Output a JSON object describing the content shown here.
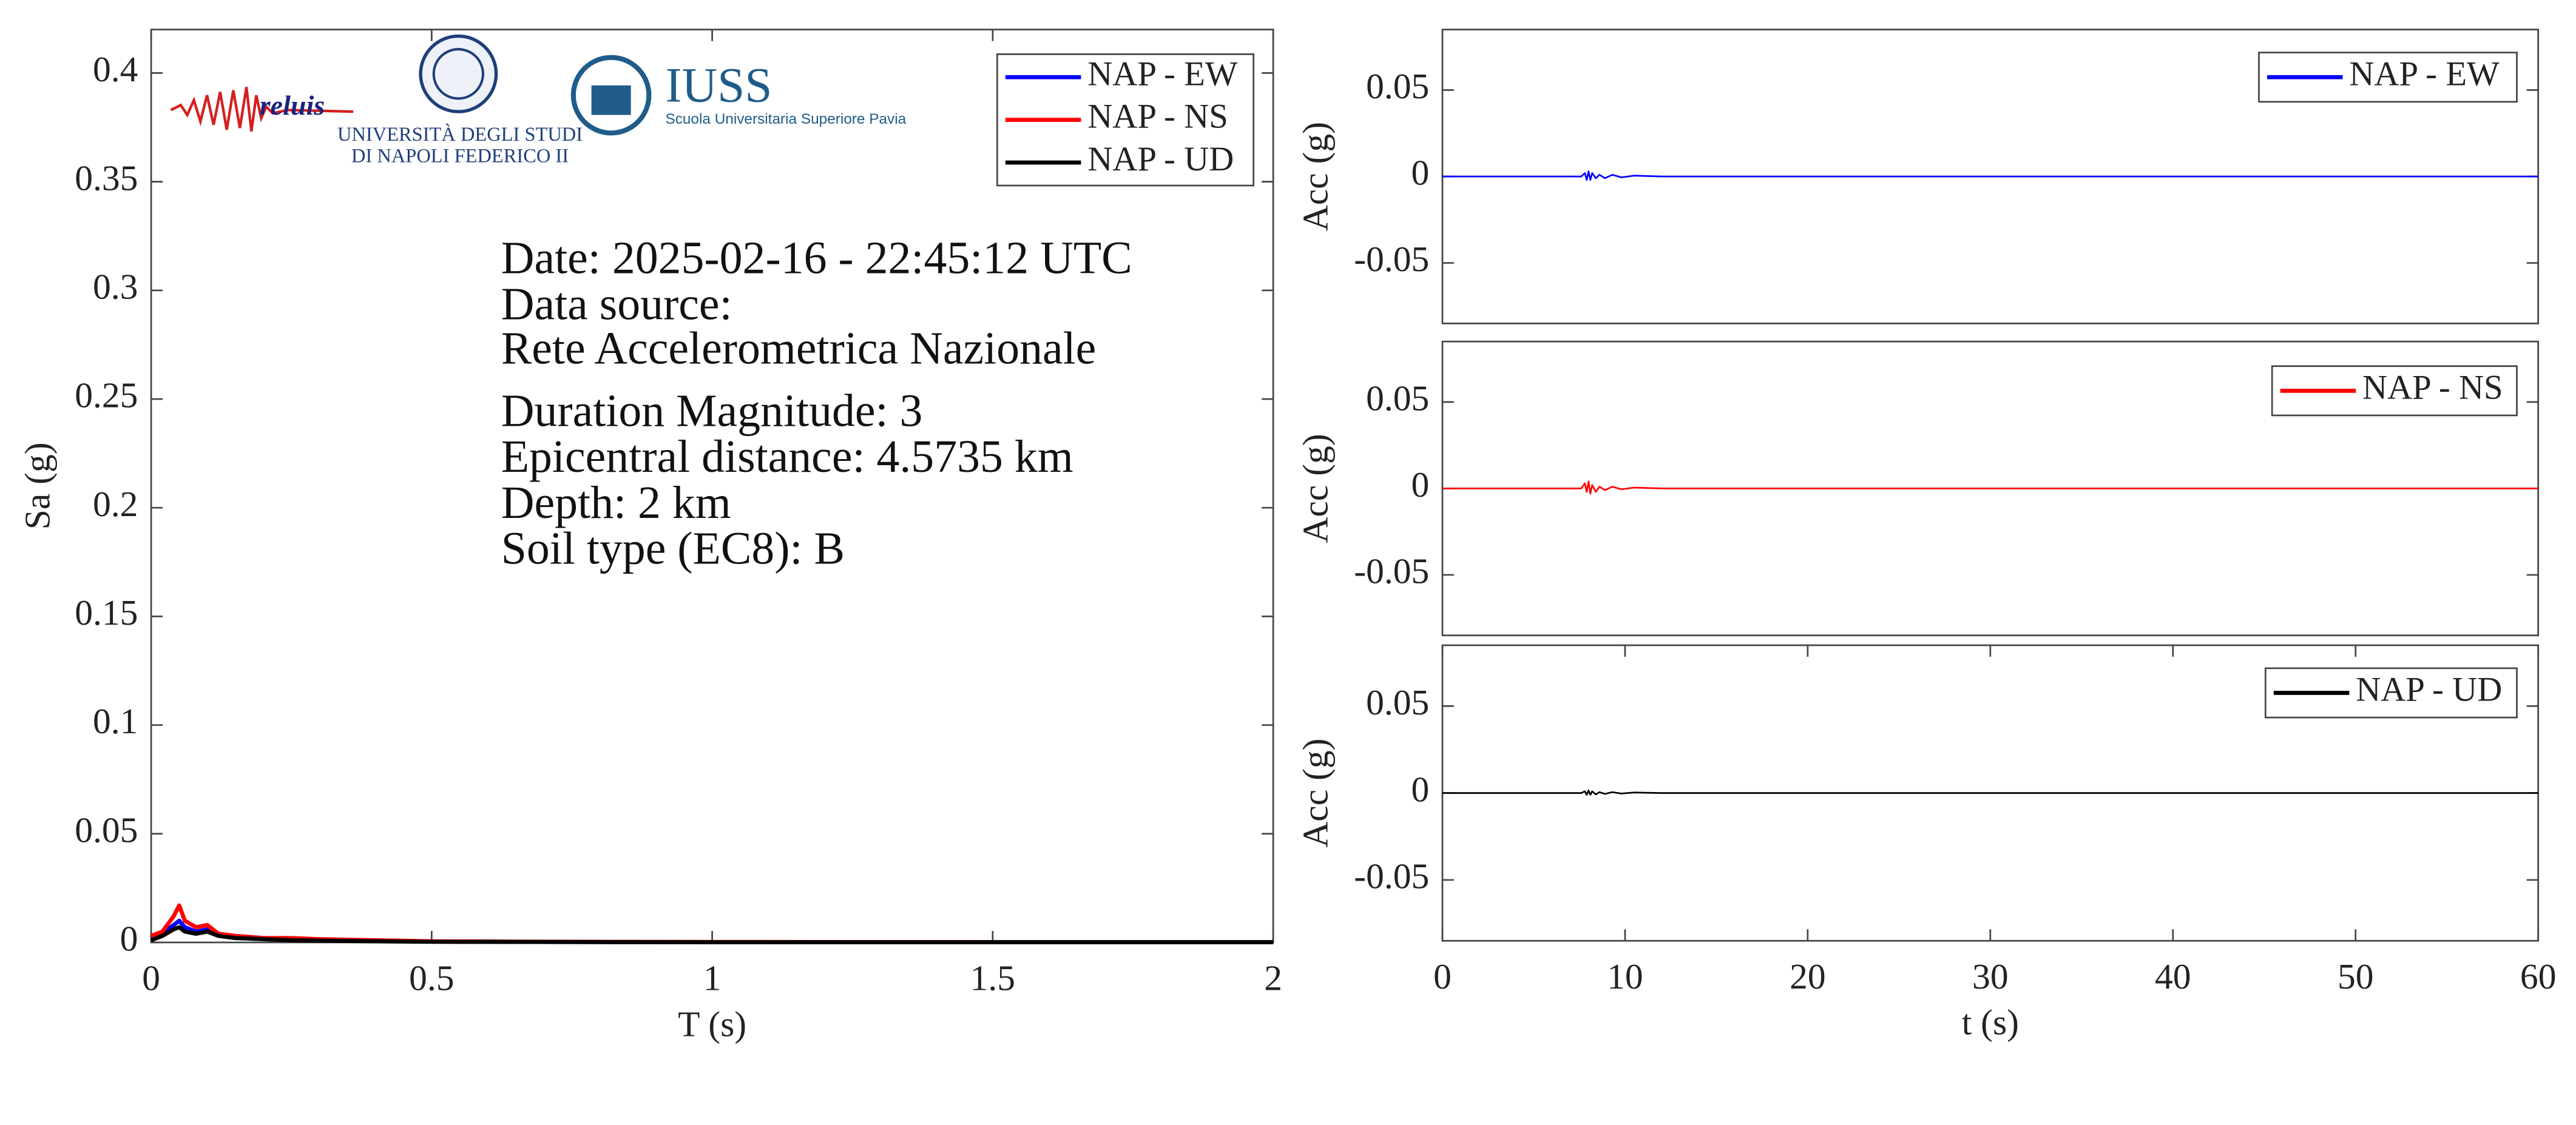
{
  "chart_data": [
    {
      "type": "line",
      "xlabel": "T (s)",
      "ylabel": "Sa (g)",
      "xlim": [
        0,
        2
      ],
      "xticks": [
        0,
        0.5,
        1,
        1.5,
        2
      ],
      "ylim": [
        0,
        0.42
      ],
      "yticks": [
        0,
        0.05,
        0.1,
        0.15,
        0.2,
        0.25,
        0.3,
        0.35,
        0.4
      ],
      "legend": "upper right",
      "annotations": [
        "Date: 2025-02-16 - 22:45:12 UTC",
        "Data source:",
        "Rete Accelerometrica Nazionale",
        "Duration Magnitude: 3",
        "Epicentral distance: 4.5735 km",
        "Depth: 2 km",
        "Soil type (EC8): B"
      ],
      "logos": [
        "reluis",
        "UNIVERSITÀ DEGLI STUDI",
        "DI NAPOLI FEDERICO II",
        "IUSS",
        "Scuola Universitaria Superiore Pavia"
      ],
      "x": [
        0,
        0.02,
        0.04,
        0.05,
        0.06,
        0.08,
        0.1,
        0.12,
        0.15,
        0.2,
        0.25,
        0.3,
        0.4,
        0.5,
        0.75,
        1,
        1.5,
        2
      ],
      "series": [
        {
          "name": "NAP - EW",
          "color": "#0000ff",
          "values": [
            0.002,
            0.004,
            0.008,
            0.01,
            0.007,
            0.005,
            0.006,
            0.004,
            0.003,
            0.002,
            0.0015,
            0.001,
            0.0007,
            0.0004,
            0.0002,
            0.0001,
            0.0001,
            0.0001
          ]
        },
        {
          "name": "NAP - NS",
          "color": "#ff0000",
          "values": [
            0.003,
            0.005,
            0.012,
            0.017,
            0.01,
            0.007,
            0.008,
            0.004,
            0.003,
            0.002,
            0.002,
            0.0015,
            0.001,
            0.0005,
            0.0003,
            0.0002,
            0.0001,
            0.0001
          ]
        },
        {
          "name": "NAP - UD",
          "color": "#000000",
          "values": [
            0.001,
            0.003,
            0.006,
            0.007,
            0.005,
            0.004,
            0.005,
            0.003,
            0.002,
            0.0015,
            0.001,
            0.0008,
            0.0005,
            0.0003,
            0.0002,
            0.0001,
            0.0001,
            0.0001
          ]
        }
      ]
    },
    {
      "type": "line",
      "ylabel": "Acc (g)",
      "xlim": [
        0,
        60
      ],
      "ylim": [
        -0.085,
        0.085
      ],
      "yticks": [
        -0.05,
        0,
        0.05
      ],
      "legend": "upper right",
      "x": [
        0,
        7.6,
        7.8,
        7.9,
        8.0,
        8.1,
        8.2,
        8.4,
        8.6,
        8.9,
        9.3,
        9.8,
        10.5,
        12,
        60
      ],
      "series": [
        {
          "name": "NAP - EW",
          "color": "#0000ff",
          "values": [
            0,
            0,
            0.002,
            -0.002,
            0.003,
            -0.002,
            0.002,
            -0.001,
            0.001,
            -0.001,
            0.001,
            -0.0005,
            0.0005,
            0,
            0
          ]
        }
      ]
    },
    {
      "type": "line",
      "ylabel": "Acc (g)",
      "xlim": [
        0,
        60
      ],
      "ylim": [
        -0.085,
        0.085
      ],
      "yticks": [
        -0.05,
        0,
        0.05
      ],
      "legend": "upper right",
      "x": [
        0,
        7.6,
        7.8,
        7.9,
        8.0,
        8.1,
        8.2,
        8.4,
        8.6,
        8.9,
        9.3,
        9.8,
        10.5,
        12,
        60
      ],
      "series": [
        {
          "name": "NAP - NS",
          "color": "#ff0000",
          "values": [
            0,
            0,
            0.003,
            -0.002,
            0.004,
            -0.003,
            0.002,
            -0.002,
            0.001,
            -0.001,
            0.001,
            -0.0005,
            0.0005,
            0,
            0
          ]
        }
      ]
    },
    {
      "type": "line",
      "xlabel": "t (s)",
      "ylabel": "Acc (g)",
      "xlim": [
        0,
        60
      ],
      "xticks": [
        0,
        10,
        20,
        30,
        40,
        50,
        60
      ],
      "ylim": [
        -0.085,
        0.085
      ],
      "yticks": [
        -0.05,
        0,
        0.05
      ],
      "legend": "upper right",
      "x": [
        0,
        7.6,
        7.8,
        7.9,
        8.0,
        8.1,
        8.2,
        8.4,
        8.6,
        8.9,
        9.3,
        9.8,
        10.5,
        12,
        60
      ],
      "series": [
        {
          "name": "NAP - UD",
          "color": "#000000",
          "values": [
            0,
            0,
            0.001,
            -0.001,
            0.0015,
            -0.001,
            0.001,
            -0.0008,
            0.0005,
            -0.0005,
            0.0005,
            -0.0003,
            0.0003,
            0,
            0
          ]
        }
      ]
    }
  ]
}
